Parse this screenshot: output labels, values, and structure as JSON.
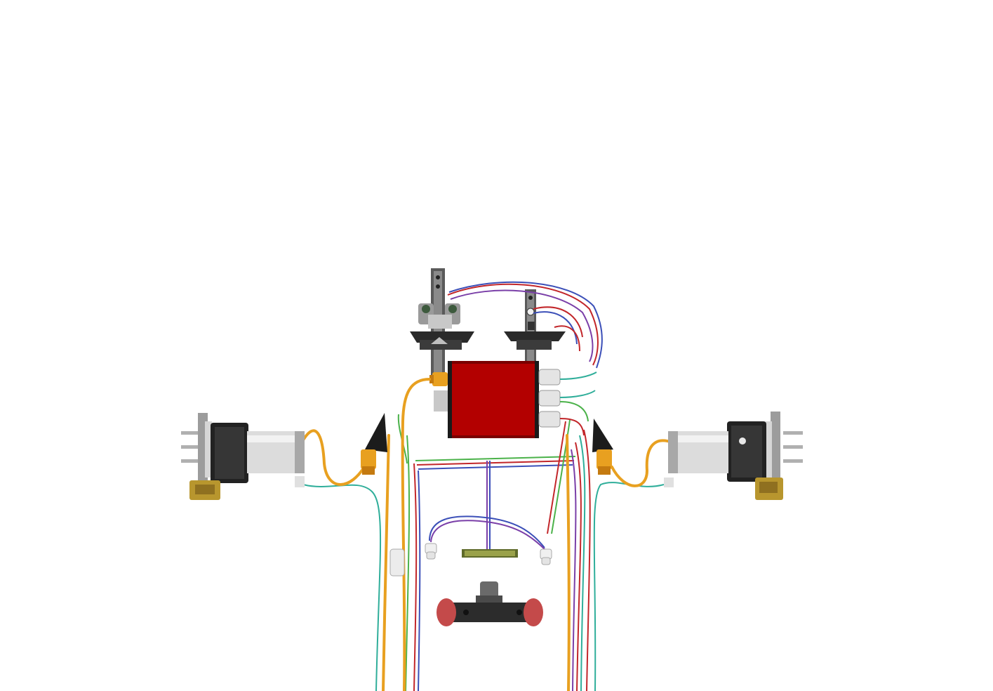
{
  "scene": {
    "kind": "3D CAD render of an electric drivetrain / wiring harness assembly on white background",
    "text": ""
  },
  "colors": {
    "background": "#ffffff",
    "controller_red": "#b30000",
    "orange_cable": "#e8a020",
    "teal_wire": "#2fae9a",
    "red_wire": "#c2262a",
    "blue_wire": "#3b4fb8",
    "green_wire": "#4bb24a",
    "purple_wire": "#7a3fa8",
    "motor_silver": "#dcdcdc",
    "motor_black": "#222222",
    "caliper_gold": "#b8962e",
    "bracket_dark": "#3a3a3a"
  },
  "icons": {
    "motor": "electric-motor-icon",
    "controller": "controller-box-icon",
    "caliper": "brake-caliper-icon",
    "connector": "cable-connector-icon",
    "sensor": "sensor-icon",
    "bracket": "mounting-bracket-icon"
  }
}
